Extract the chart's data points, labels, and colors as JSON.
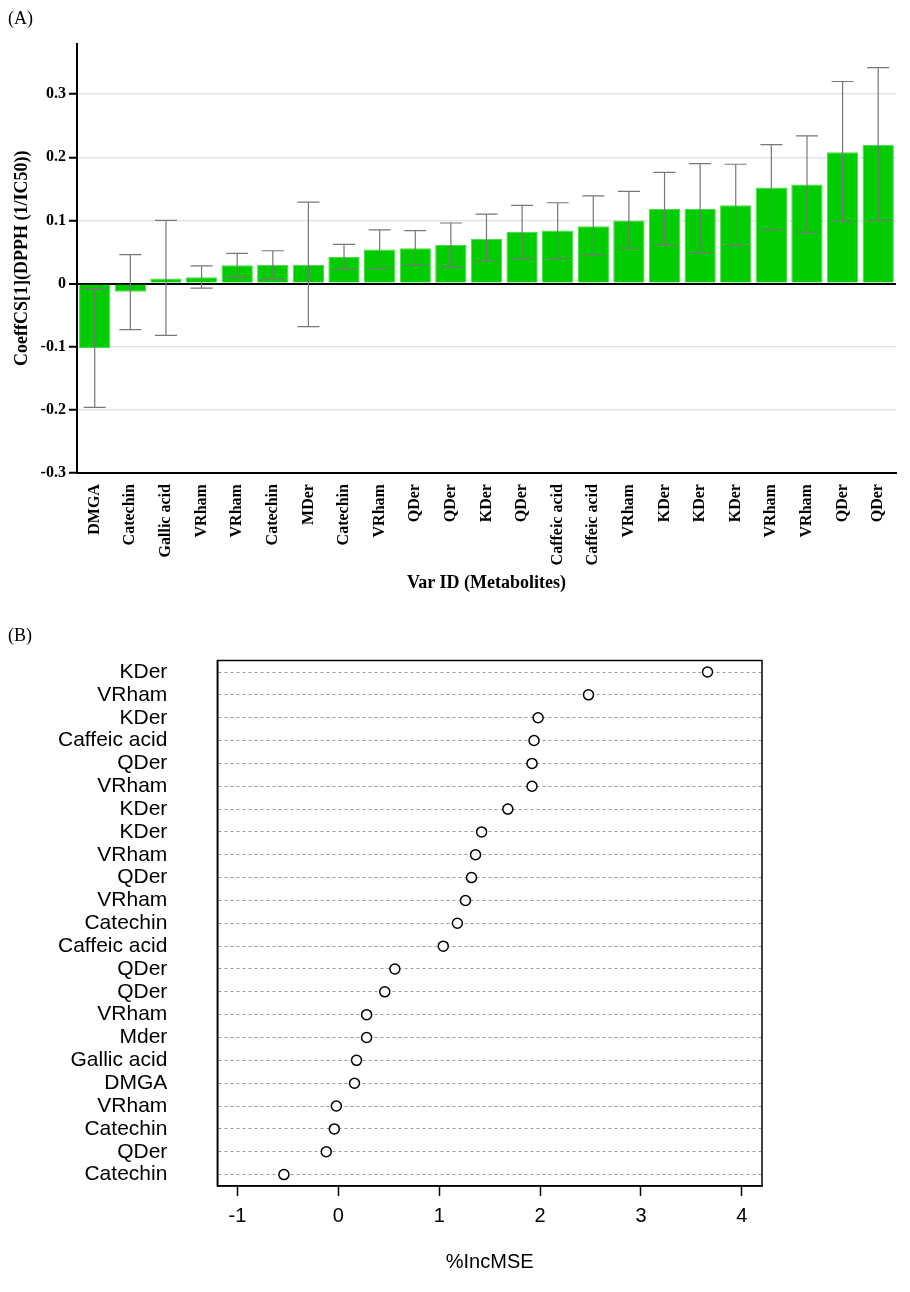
{
  "chart_data": [
    {
      "type": "bar",
      "title": "(A)",
      "xlabel": "Var ID (Metabolites)",
      "ylabel": "CoeffCS[1](DPPH (1/IC50))",
      "categories": [
        "DMGA",
        "Catechin",
        "Gallic acid",
        "VRham",
        "VRham",
        "Catechin",
        "MDer",
        "Catechin",
        "VRham",
        "QDer",
        "QDer",
        "KDer",
        "QDer",
        "Caffeic acid",
        "Caffeic acid",
        "VRham",
        "KDer",
        "KDer",
        "KDer",
        "VRham",
        "VRham",
        "QDer",
        "QDer"
      ],
      "values": [
        -0.102,
        -0.013,
        0.008,
        0.01,
        0.029,
        0.03,
        0.03,
        0.042,
        0.054,
        0.056,
        0.061,
        0.071,
        0.082,
        0.084,
        0.091,
        0.1,
        0.118,
        0.118,
        0.124,
        0.152,
        0.157,
        0.208,
        0.22
      ],
      "errors": [
        [
          -0.196,
          -0.008
        ],
        [
          -0.073,
          0.046
        ],
        [
          -0.082,
          0.1
        ],
        [
          -0.007,
          0.028
        ],
        [
          0.01,
          0.048
        ],
        [
          0.008,
          0.052
        ],
        [
          -0.068,
          0.129
        ],
        [
          0.022,
          0.062
        ],
        [
          0.024,
          0.085
        ],
        [
          0.03,
          0.084
        ],
        [
          0.026,
          0.096
        ],
        [
          0.035,
          0.11
        ],
        [
          0.04,
          0.124
        ],
        [
          0.04,
          0.128
        ],
        [
          0.045,
          0.139
        ],
        [
          0.056,
          0.146
        ],
        [
          0.061,
          0.176
        ],
        [
          0.049,
          0.19
        ],
        [
          0.06,
          0.189
        ],
        [
          0.085,
          0.22
        ],
        [
          0.081,
          0.234
        ],
        [
          0.098,
          0.32
        ],
        [
          0.1,
          0.342
        ]
      ],
      "color": "#00cc00",
      "ylim": [
        -0.3,
        0.38
      ],
      "yticks": [
        -0.3,
        -0.2,
        -0.1,
        0,
        0.1,
        0.2,
        0.3
      ],
      "grid": "y"
    },
    {
      "type": "scatter",
      "title": "(B)",
      "xlabel": "%IncMSE",
      "orientation": "horizontal",
      "categories": [
        "KDer",
        "VRham",
        "KDer",
        "Caffeic acid",
        "QDer",
        "VRham",
        "KDer",
        "KDer",
        "VRham",
        "QDer",
        "VRham",
        "Catechin",
        "Caffeic acid",
        "QDer",
        "QDer",
        "VRham",
        "Mder",
        "Gallic acid",
        "DMGA",
        "VRham",
        "Catechin",
        "QDer",
        "Catechin"
      ],
      "values": [
        3.66,
        2.48,
        1.98,
        1.94,
        1.92,
        1.92,
        1.68,
        1.42,
        1.36,
        1.32,
        1.26,
        1.18,
        1.04,
        0.56,
        0.46,
        0.28,
        0.28,
        0.18,
        0.16,
        -0.02,
        -0.04,
        -0.12,
        -0.54
      ],
      "color": "#000000",
      "xlim": [
        -1.2,
        4.2
      ],
      "xticks": [
        -1,
        0,
        1,
        2,
        3,
        4
      ],
      "grid": "y",
      "marker": "circle"
    }
  ]
}
